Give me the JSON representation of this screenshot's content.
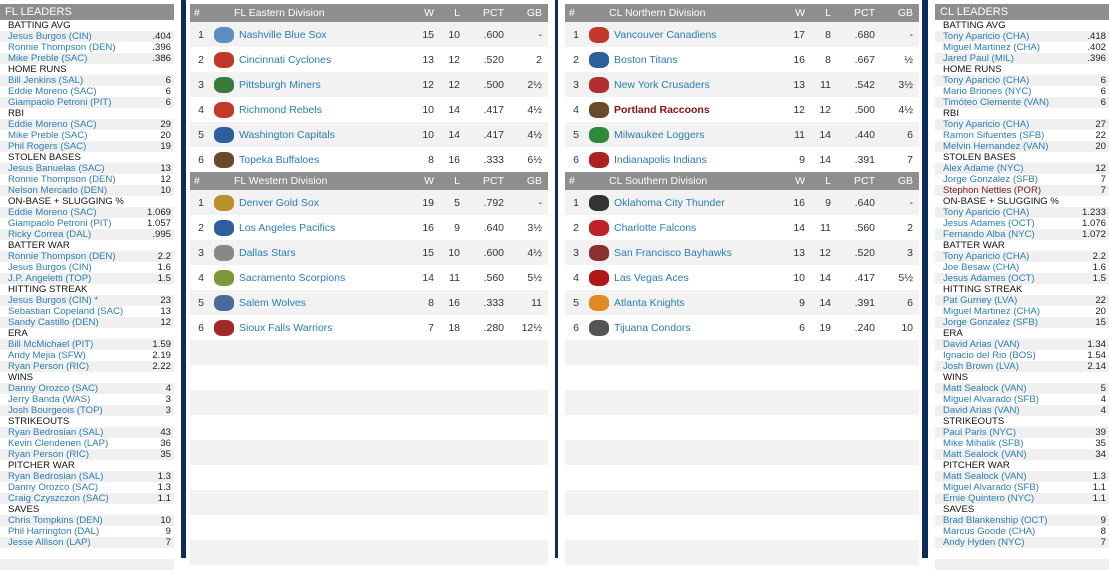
{
  "fl_leaders": {
    "title": "FL LEADERS",
    "categories": [
      {
        "name": "BATTING AVG",
        "rows": [
          [
            "Jesus Burgos (CIN)",
            ".404"
          ],
          [
            "Ronnie Thompson (DEN)",
            ".396"
          ],
          [
            "Mike Preble (SAC)",
            ".386"
          ]
        ]
      },
      {
        "name": "HOME RUNS",
        "rows": [
          [
            "Bill Jenkins (SAL)",
            "6"
          ],
          [
            "Eddie Moreno (SAC)",
            "6"
          ],
          [
            "Giampaolo Petroni (PIT)",
            "6"
          ]
        ]
      },
      {
        "name": "RBI",
        "rows": [
          [
            "Eddie Moreno (SAC)",
            "29"
          ],
          [
            "Mike Preble (SAC)",
            "20"
          ],
          [
            "Phil Rogers (SAC)",
            "19"
          ]
        ]
      },
      {
        "name": "STOLEN BASES",
        "rows": [
          [
            "Jesus Banuelas (SAC)",
            "13"
          ],
          [
            "Ronnie Thompson (DEN)",
            "12"
          ],
          [
            "Nelson Mercado (DEN)",
            "10"
          ]
        ]
      },
      {
        "name": "ON-BASE + SLUGGING %",
        "rows": [
          [
            "Eddie Moreno (SAC)",
            "1.069"
          ],
          [
            "Giampaolo Petroni (PIT)",
            "1.057"
          ],
          [
            "Ricky Correa (DAL)",
            ".995"
          ]
        ]
      },
      {
        "name": "BATTER WAR",
        "rows": [
          [
            "Ronnie Thompson (DEN)",
            "2.2"
          ],
          [
            "Jesus Burgos (CIN)",
            "1.6"
          ],
          [
            "J.P. Angeletti (TOP)",
            "1.5"
          ]
        ]
      },
      {
        "name": "HITTING STREAK",
        "rows": [
          [
            "Jesus Burgos (CIN) *",
            "23"
          ],
          [
            "Sebastian Copeland (SAC)",
            "13"
          ],
          [
            "Sandy Castillo (DEN)",
            "12"
          ]
        ]
      },
      {
        "name": "ERA",
        "rows": [
          [
            "Bill McMichael (PIT)",
            "1.59"
          ],
          [
            "Andy Mejia (SFW)",
            "2.19"
          ],
          [
            "Ryan Person (RIC)",
            "2.22"
          ]
        ]
      },
      {
        "name": "WINS",
        "rows": [
          [
            "Danny Orozco (SAC)",
            "4"
          ],
          [
            "Jerry Banda (WAS)",
            "3"
          ],
          [
            "Josh Bourgeois (TOP)",
            "3"
          ]
        ]
      },
      {
        "name": "STRIKEOUTS",
        "rows": [
          [
            "Ryan Bedrosian (SAL)",
            "43"
          ],
          [
            "Kevin Clendenen (LAP)",
            "36"
          ],
          [
            "Ryan Person (RIC)",
            "35"
          ]
        ]
      },
      {
        "name": "PITCHER WAR",
        "rows": [
          [
            "Ryan Bedrosian (SAL)",
            "1.3"
          ],
          [
            "Danny Orozco (SAC)",
            "1.3"
          ],
          [
            "Craig Czyszczon (SAC)",
            "1.1"
          ]
        ]
      },
      {
        "name": "SAVES",
        "rows": [
          [
            "Chris Tompkins (DEN)",
            "10"
          ],
          [
            "Phil Harrington (DAL)",
            "9"
          ],
          [
            "Jesse Allison (LAP)",
            "7"
          ]
        ]
      }
    ]
  },
  "cl_leaders": {
    "title": "CL LEADERS",
    "categories": [
      {
        "name": "BATTING AVG",
        "rows": [
          [
            "Tony Aparicio (CHA)",
            ".418"
          ],
          [
            "Miguel Martinez (CHA)",
            ".402"
          ],
          [
            "Jared Paul (MIL)",
            ".396"
          ]
        ]
      },
      {
        "name": "HOME RUNS",
        "rows": [
          [
            "Tony Aparicio (CHA)",
            "6"
          ],
          [
            "Mario Briones (NYC)",
            "6"
          ],
          [
            "Timóteo Clemente (VAN)",
            "6"
          ]
        ]
      },
      {
        "name": "RBI",
        "rows": [
          [
            "Tony Aparicio (CHA)",
            "27"
          ],
          [
            "Ramon Sifuentes (SFB)",
            "22"
          ],
          [
            "Melvin Hernandez (VAN)",
            "20"
          ]
        ]
      },
      {
        "name": "STOLEN BASES",
        "rows": [
          [
            "Alex Adame (NYC)",
            "12"
          ],
          [
            "Jorge Gonzalez (SFB)",
            "7"
          ],
          [
            "Stephon Nettles (POR)",
            "7"
          ]
        ]
      },
      {
        "name": "ON-BASE + SLUGGING %",
        "rows": [
          [
            "Tony Aparicio (CHA)",
            "1.233"
          ],
          [
            "Jesus Adames (OCT)",
            "1.076"
          ],
          [
            "Fernando Alba (NYC)",
            "1.072"
          ]
        ]
      },
      {
        "name": "BATTER WAR",
        "rows": [
          [
            "Tony Aparicio (CHA)",
            "2.2"
          ],
          [
            "Joe Besaw (CHA)",
            "1.6"
          ],
          [
            "Jesus Adames (OCT)",
            "1.5"
          ]
        ]
      },
      {
        "name": "HITTING STREAK",
        "rows": [
          [
            "Pat Gurney (LVA)",
            "22"
          ],
          [
            "Miguel Martinez (CHA)",
            "20"
          ],
          [
            "Jorge Gonzalez (SFB)",
            "15"
          ]
        ]
      },
      {
        "name": "ERA",
        "rows": [
          [
            "David Arias (VAN)",
            "1.34"
          ],
          [
            "Ignacio del Rio (BOS)",
            "1.54"
          ],
          [
            "Josh Brown (LVA)",
            "2.14"
          ]
        ]
      },
      {
        "name": "WINS",
        "rows": [
          [
            "Matt Sealock (VAN)",
            "5"
          ],
          [
            "Miguel Alvarado (SFB)",
            "4"
          ],
          [
            "David Arias (VAN)",
            "4"
          ]
        ]
      },
      {
        "name": "STRIKEOUTS",
        "rows": [
          [
            "Paul Paris (NYC)",
            "39"
          ],
          [
            "Mike Mihalik (SFB)",
            "35"
          ],
          [
            "Matt Sealock (VAN)",
            "34"
          ]
        ]
      },
      {
        "name": "PITCHER WAR",
        "rows": [
          [
            "Matt Sealock (VAN)",
            "1.3"
          ],
          [
            "Miguel Alvarado (SFB)",
            "1.1"
          ],
          [
            "Ernie Quintero (NYC)",
            "1.1"
          ]
        ]
      },
      {
        "name": "SAVES",
        "rows": [
          [
            "Brad Blankenship (OCT)",
            "9"
          ],
          [
            "Marcus Goode (CHA)",
            "8"
          ],
          [
            "Andy Hyden (NYC)",
            "7"
          ]
        ]
      }
    ]
  },
  "columns": {
    "rank": "#",
    "w": "W",
    "l": "L",
    "pct": "PCT",
    "gb": "GB"
  },
  "standings": [
    {
      "league": "fl",
      "divisions": [
        {
          "name": "FL Eastern Division",
          "teams": [
            {
              "rank": "1",
              "team": "Nashville Blue Sox",
              "w": "15",
              "l": "10",
              "pct": ".600",
              "gb": "-",
              "color": "#5b8fc2"
            },
            {
              "rank": "2",
              "team": "Cincinnati Cyclones",
              "w": "13",
              "l": "12",
              "pct": ".520",
              "gb": "2",
              "color": "#c0392b"
            },
            {
              "rank": "3",
              "team": "Pittsburgh Miners",
              "w": "12",
              "l": "12",
              "pct": ".500",
              "gb": "2½",
              "color": "#3b7a3b"
            },
            {
              "rank": "4",
              "team": "Richmond Rebels",
              "w": "10",
              "l": "14",
              "pct": ".417",
              "gb": "4½",
              "color": "#c0392b"
            },
            {
              "rank": "5",
              "team": "Washington Capitals",
              "w": "10",
              "l": "14",
              "pct": ".417",
              "gb": "4½",
              "color": "#2e5e9e"
            },
            {
              "rank": "6",
              "team": "Topeka Buffaloes",
              "w": "8",
              "l": "16",
              "pct": ".333",
              "gb": "6½",
              "color": "#6b4a2b"
            }
          ]
        },
        {
          "name": "FL Western Division",
          "teams": [
            {
              "rank": "1",
              "team": "Denver Gold Sox",
              "w": "19",
              "l": "5",
              "pct": ".792",
              "gb": "-",
              "color": "#b8902c"
            },
            {
              "rank": "2",
              "team": "Los Angeles Pacifics",
              "w": "16",
              "l": "9",
              "pct": ".640",
              "gb": "3½",
              "color": "#2e5e9e"
            },
            {
              "rank": "3",
              "team": "Dallas Stars",
              "w": "15",
              "l": "10",
              "pct": ".600",
              "gb": "4½",
              "color": "#888888"
            },
            {
              "rank": "4",
              "team": "Sacramento Scorpions",
              "w": "14",
              "l": "11",
              "pct": ".560",
              "gb": "5½",
              "color": "#7a9a3a"
            },
            {
              "rank": "5",
              "team": "Salem Wolves",
              "w": "8",
              "l": "16",
              "pct": ".333",
              "gb": "11",
              "color": "#4a6a9a"
            },
            {
              "rank": "6",
              "team": "Sioux Falls Warriors",
              "w": "7",
              "l": "18",
              "pct": ".280",
              "gb": "12½",
              "color": "#a02828"
            }
          ]
        }
      ]
    },
    {
      "league": "cl",
      "divisions": [
        {
          "name": "CL Northern Division",
          "teams": [
            {
              "rank": "1",
              "team": "Vancouver Canadiens",
              "w": "17",
              "l": "8",
              "pct": ".680",
              "gb": "-",
              "color": "#c0392b"
            },
            {
              "rank": "2",
              "team": "Boston Titans",
              "w": "16",
              "l": "8",
              "pct": ".667",
              "gb": "½",
              "color": "#2e5e9e"
            },
            {
              "rank": "3",
              "team": "New York Crusaders",
              "w": "13",
              "l": "11",
              "pct": ".542",
              "gb": "3½",
              "color": "#b03030"
            },
            {
              "rank": "4",
              "team": "Portland Raccoons",
              "w": "12",
              "l": "12",
              "pct": ".500",
              "gb": "4½",
              "color": "#6b4a2b",
              "highlight": true
            },
            {
              "rank": "5",
              "team": "Milwaukee Loggers",
              "w": "11",
              "l": "14",
              "pct": ".440",
              "gb": "6",
              "color": "#2e8b3e"
            },
            {
              "rank": "6",
              "team": "Indianapolis Indians",
              "w": "9",
              "l": "14",
              "pct": ".391",
              "gb": "7",
              "color": "#b02020"
            }
          ]
        },
        {
          "name": "CL Southern Division",
          "teams": [
            {
              "rank": "1",
              "team": "Oklahoma City Thunder",
              "w": "16",
              "l": "9",
              "pct": ".640",
              "gb": "-",
              "color": "#333333"
            },
            {
              "rank": "2",
              "team": "Charlotte Falcons",
              "w": "14",
              "l": "11",
              "pct": ".560",
              "gb": "2",
              "color": "#c0202a"
            },
            {
              "rank": "3",
              "team": "San Francisco Bayhawks",
              "w": "13",
              "l": "12",
              "pct": ".520",
              "gb": "3",
              "color": "#8a3030"
            },
            {
              "rank": "4",
              "team": "Las Vegas Aces",
              "w": "10",
              "l": "14",
              "pct": ".417",
              "gb": "5½",
              "color": "#b01818"
            },
            {
              "rank": "5",
              "team": "Atlanta Knights",
              "w": "9",
              "l": "14",
              "pct": ".391",
              "gb": "6",
              "color": "#e08a20"
            },
            {
              "rank": "6",
              "team": "Tijuana Condors",
              "w": "6",
              "l": "19",
              "pct": ".240",
              "gb": "10",
              "color": "#555555"
            }
          ]
        }
      ]
    }
  ]
}
